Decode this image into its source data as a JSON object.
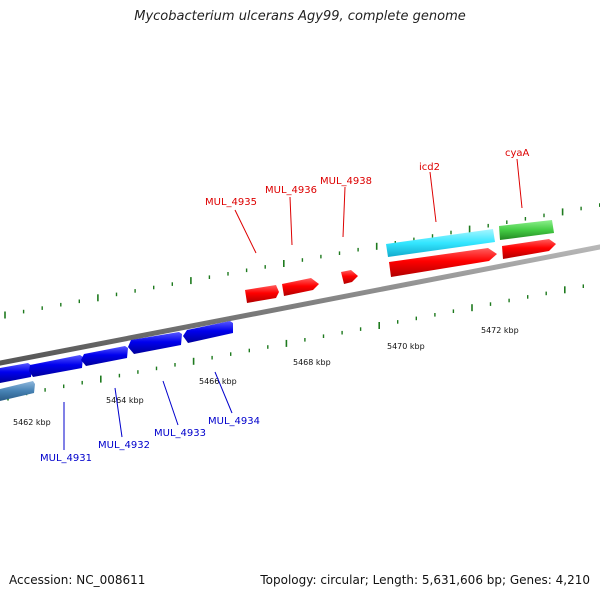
{
  "title": "Mycobacterium ulcerans Agy99, complete genome",
  "footer": {
    "accession": "Accession: NC_008611",
    "summary": "Topology: circular; Length: 5,631,606 bp; Genes: 4,210"
  },
  "colors": {
    "backbone": "#808080",
    "tick": "#1e7a1e",
    "forward_gene": "#ff0000",
    "reverse_gene": "#0000dd",
    "cds_cyan": "#33e6ff",
    "cds_green": "#44cc44",
    "cds_steelblue": "#4682b4",
    "label_red": "#dd0000",
    "label_blue": "#0000cc"
  },
  "scale_labels": [
    "5462 kbp",
    "5464 kbp",
    "5466 kbp",
    "5468 kbp",
    "5470 kbp",
    "5472 kbp"
  ],
  "gene_labels": {
    "top": [
      "MUL_4935",
      "MUL_4936",
      "MUL_4938",
      "icd2",
      "cyaA"
    ],
    "bottom": [
      "MUL_4931",
      "MUL_4932",
      "MUL_4933",
      "MUL_4934"
    ]
  }
}
